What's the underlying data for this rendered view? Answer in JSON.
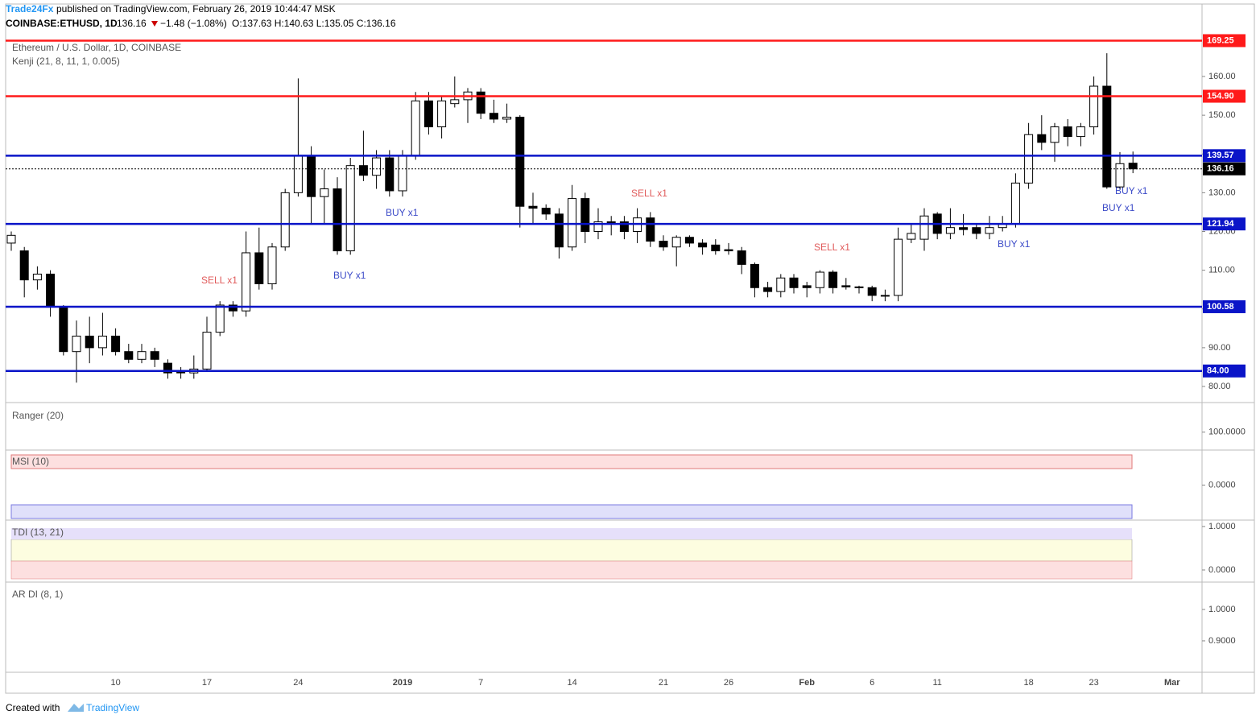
{
  "header": {
    "publisher": "Trade24Fx",
    "published": "published on TradingView.com, February 26, 2019 10:44:47 MSK",
    "symbol": "COINBASE:ETHUSD, 1D",
    "last": "136.16",
    "change": "−1.48 (−1.08%)",
    "ohlc": "O:137.63 H:140.63 L:135.05 C:136.16"
  },
  "chart_data": {
    "type": "candlestick",
    "title": "Ethereum / U.S. Dollar, 1D, COINBASE",
    "subtitle": "Kenji (21, 8, 11, 1, 0.005)",
    "categories": [
      null,
      null,
      null,
      null,
      null,
      null,
      null,
      null,
      "10",
      null,
      null,
      null,
      null,
      null,
      null,
      "17",
      null,
      null,
      null,
      null,
      null,
      null,
      "24",
      null,
      null,
      null,
      null,
      null,
      null,
      null,
      "2019",
      null,
      null,
      null,
      null,
      null,
      "7",
      null,
      null,
      null,
      null,
      null,
      null,
      "14",
      null,
      null,
      null,
      null,
      null,
      null,
      "21",
      null,
      null,
      null,
      null,
      "26",
      null,
      null,
      null,
      null,
      null,
      "Feb",
      null,
      null,
      null,
      null,
      "6",
      null,
      null,
      null,
      null,
      "11",
      null,
      null,
      null,
      null,
      null,
      null,
      "18",
      null,
      null,
      null,
      null,
      "23",
      null,
      null,
      null,
      null,
      null,
      "Mar"
    ],
    "open": [
      117,
      115,
      107.5,
      109,
      100.5,
      89,
      93,
      90,
      93,
      89,
      87,
      89,
      86,
      84,
      83.5,
      84.5,
      94,
      101,
      99.5,
      114.5,
      106.5,
      116,
      130,
      139.5,
      129,
      131,
      115,
      137,
      134.5,
      139,
      130.5,
      139.5,
      153.7,
      147,
      153,
      154,
      156,
      150.5,
      149,
      149.5,
      126.5,
      126,
      124.5,
      116,
      128.5,
      120,
      122.5,
      122.5,
      120,
      123.5,
      117.5,
      116,
      118.5,
      117,
      116.5,
      115.3,
      115,
      111.5,
      105.5,
      104.5,
      108,
      106,
      105.5,
      109.5,
      106,
      105.7,
      105.5,
      103.3,
      103.5,
      118,
      118,
      124.5,
      119.5,
      121,
      121,
      119.5,
      121,
      122,
      132.5,
      145,
      143,
      147,
      144.5,
      147,
      157.5,
      131.5,
      137.63,
      null,
      null,
      null
    ],
    "high": [
      120,
      116,
      111,
      110,
      101,
      97,
      98,
      99,
      95,
      91,
      91,
      90,
      87,
      85,
      88,
      98,
      102,
      102,
      120,
      121,
      117,
      131,
      159.5,
      142,
      136,
      134,
      139,
      146,
      141,
      141,
      141,
      156,
      156,
      155,
      160,
      157,
      157,
      154,
      153,
      150,
      130,
      127,
      126,
      132,
      130,
      126,
      124,
      124,
      126,
      125,
      119,
      119,
      119,
      118,
      118,
      117,
      116,
      112,
      107,
      109,
      109,
      107,
      110,
      110,
      108,
      106,
      106,
      105,
      121,
      122,
      126,
      125,
      126,
      124.5,
      122,
      124,
      124,
      135,
      148,
      150,
      148,
      149,
      148,
      160,
      166,
      140.5,
      140.63,
      null,
      null,
      null
    ],
    "low": [
      115,
      103,
      105,
      98,
      88,
      81,
      86,
      88,
      88,
      86,
      86,
      85,
      82,
      82,
      82,
      84,
      93,
      98,
      98,
      105,
      105,
      115,
      129,
      122,
      122,
      114,
      114,
      133,
      131,
      129,
      129,
      138.5,
      145,
      144,
      152,
      148,
      149,
      148,
      148,
      121,
      122,
      123,
      113,
      115,
      117,
      118,
      119,
      118,
      117,
      116,
      115,
      111,
      116,
      114,
      114,
      114,
      109,
      103,
      103,
      103,
      104,
      103,
      104,
      104,
      105,
      104,
      102,
      102,
      102,
      117,
      115,
      118,
      118,
      119,
      118,
      118,
      120,
      121,
      131,
      141,
      138,
      142,
      142,
      145,
      131,
      131,
      135.05,
      null,
      null,
      null
    ],
    "close": [
      119,
      107.5,
      109,
      100.5,
      89,
      93,
      90,
      93,
      89,
      87,
      89,
      87,
      83.5,
      83.5,
      84.5,
      94,
      101,
      99.5,
      114.5,
      106.5,
      116,
      130,
      139.5,
      129,
      131,
      115,
      137,
      134.5,
      139,
      130.5,
      139.5,
      153.7,
      147,
      153.7,
      154,
      156,
      150.5,
      149,
      149.5,
      126.5,
      126,
      124.5,
      116,
      128.5,
      120,
      122.5,
      122.3,
      120,
      123.5,
      117.5,
      116,
      118.5,
      117,
      116,
      115,
      115,
      111.5,
      105.5,
      104.5,
      108,
      105.5,
      105.5,
      109.5,
      105.5,
      105.7,
      105.5,
      103.5,
      103.5,
      118,
      119.5,
      124,
      119.5,
      121,
      120.5,
      119.5,
      121,
      122,
      132.5,
      145,
      143,
      147,
      144.5,
      147,
      157.5,
      131.5,
      137.5,
      136.16,
      null,
      null,
      null
    ],
    "levels": [
      {
        "value": 169.25,
        "color": "#ff1a1a"
      },
      {
        "value": 154.9,
        "label": "154.90",
        "color": "#ff1a1a"
      },
      {
        "value": 139.57,
        "color": "#0a14c8"
      },
      {
        "value": 121.94,
        "color": "#0a14c8"
      },
      {
        "value": 100.58,
        "color": "#0a14c8"
      },
      {
        "value": 84,
        "label": "84.00",
        "color": "#0a14c8"
      },
      {
        "value": 136.16,
        "color": "#000000"
      }
    ],
    "ylim": [
      76.26,
      178.7
    ],
    "yticks": [
      {
        "value": 80,
        "label": "80.00"
      },
      {
        "value": 90,
        "label": "90.00"
      },
      {
        "value": 100,
        "label": "100.00"
      },
      {
        "value": 110,
        "label": "110.00"
      },
      {
        "value": 120,
        "label": "120.00"
      },
      {
        "value": 130,
        "label": "130.00"
      },
      {
        "value": 140,
        "label": "140.00"
      },
      {
        "value": 150,
        "label": "150.00"
      },
      {
        "value": 160,
        "label": "160.00"
      }
    ],
    "annotations": [
      "SELL x1",
      "BUY x1",
      "BUY x1",
      "SELL x1",
      "SELL x1",
      "BUY x1",
      "BUY x1",
      "BUY x1"
    ]
  },
  "panes": [
    {
      "name": "Ranger (20)",
      "ylim": [
        97,
        105
      ],
      "yticks": [
        {
          "value": 100,
          "label": "100.0000"
        }
      ]
    },
    {
      "name": "MSI (10)",
      "ylim": [
        -1,
        1
      ],
      "yticks": [
        {
          "value": 0,
          "label": "0.0000"
        }
      ]
    },
    {
      "name": "TDI (13, 21)",
      "ylim": [
        -0.26,
        1.11
      ],
      "yticks": [
        {
          "value": 1,
          "label": "1.0000"
        },
        {
          "value": 0,
          "label": "0.0000"
        }
      ]
    },
    {
      "name": "AR DI (8, 1)",
      "ylim": [
        0.805,
        1.082
      ],
      "yticks": [
        {
          "value": 1,
          "label": "1.0000"
        },
        {
          "value": 0.9,
          "label": "0.9000"
        }
      ]
    }
  ],
  "footer": {
    "created": "Created with",
    "brand": "TradingView"
  }
}
